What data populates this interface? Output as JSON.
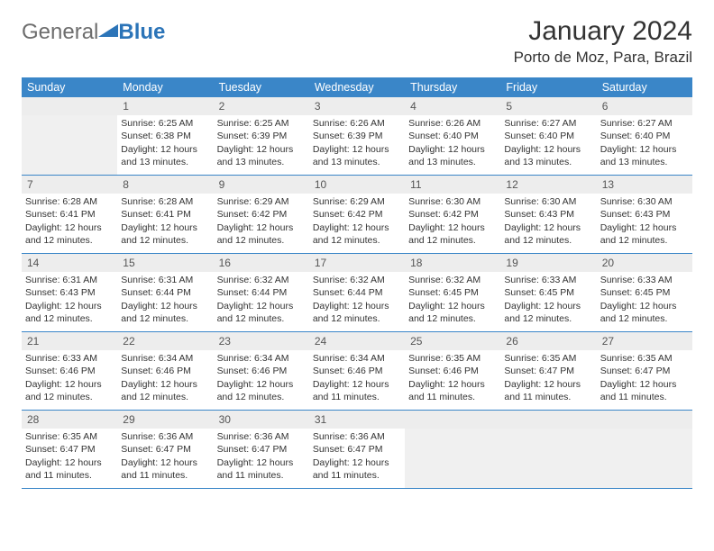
{
  "logo": {
    "part1": "General",
    "part2": "Blue",
    "triangle_color": "#2b74b8"
  },
  "title": "January 2024",
  "location": "Porto de Moz, Para, Brazil",
  "colors": {
    "header_bg": "#3a86c8",
    "header_text": "#ffffff",
    "daynum_bg": "#ededed",
    "border": "#3a86c8"
  },
  "weekdays": [
    "Sunday",
    "Monday",
    "Tuesday",
    "Wednesday",
    "Thursday",
    "Friday",
    "Saturday"
  ],
  "weeks": [
    [
      {
        "day": "",
        "sunrise": "",
        "sunset": "",
        "daylight": ""
      },
      {
        "day": "1",
        "sunrise": "Sunrise: 6:25 AM",
        "sunset": "Sunset: 6:38 PM",
        "daylight": "Daylight: 12 hours and 13 minutes."
      },
      {
        "day": "2",
        "sunrise": "Sunrise: 6:25 AM",
        "sunset": "Sunset: 6:39 PM",
        "daylight": "Daylight: 12 hours and 13 minutes."
      },
      {
        "day": "3",
        "sunrise": "Sunrise: 6:26 AM",
        "sunset": "Sunset: 6:39 PM",
        "daylight": "Daylight: 12 hours and 13 minutes."
      },
      {
        "day": "4",
        "sunrise": "Sunrise: 6:26 AM",
        "sunset": "Sunset: 6:40 PM",
        "daylight": "Daylight: 12 hours and 13 minutes."
      },
      {
        "day": "5",
        "sunrise": "Sunrise: 6:27 AM",
        "sunset": "Sunset: 6:40 PM",
        "daylight": "Daylight: 12 hours and 13 minutes."
      },
      {
        "day": "6",
        "sunrise": "Sunrise: 6:27 AM",
        "sunset": "Sunset: 6:40 PM",
        "daylight": "Daylight: 12 hours and 13 minutes."
      }
    ],
    [
      {
        "day": "7",
        "sunrise": "Sunrise: 6:28 AM",
        "sunset": "Sunset: 6:41 PM",
        "daylight": "Daylight: 12 hours and 12 minutes."
      },
      {
        "day": "8",
        "sunrise": "Sunrise: 6:28 AM",
        "sunset": "Sunset: 6:41 PM",
        "daylight": "Daylight: 12 hours and 12 minutes."
      },
      {
        "day": "9",
        "sunrise": "Sunrise: 6:29 AM",
        "sunset": "Sunset: 6:42 PM",
        "daylight": "Daylight: 12 hours and 12 minutes."
      },
      {
        "day": "10",
        "sunrise": "Sunrise: 6:29 AM",
        "sunset": "Sunset: 6:42 PM",
        "daylight": "Daylight: 12 hours and 12 minutes."
      },
      {
        "day": "11",
        "sunrise": "Sunrise: 6:30 AM",
        "sunset": "Sunset: 6:42 PM",
        "daylight": "Daylight: 12 hours and 12 minutes."
      },
      {
        "day": "12",
        "sunrise": "Sunrise: 6:30 AM",
        "sunset": "Sunset: 6:43 PM",
        "daylight": "Daylight: 12 hours and 12 minutes."
      },
      {
        "day": "13",
        "sunrise": "Sunrise: 6:30 AM",
        "sunset": "Sunset: 6:43 PM",
        "daylight": "Daylight: 12 hours and 12 minutes."
      }
    ],
    [
      {
        "day": "14",
        "sunrise": "Sunrise: 6:31 AM",
        "sunset": "Sunset: 6:43 PM",
        "daylight": "Daylight: 12 hours and 12 minutes."
      },
      {
        "day": "15",
        "sunrise": "Sunrise: 6:31 AM",
        "sunset": "Sunset: 6:44 PM",
        "daylight": "Daylight: 12 hours and 12 minutes."
      },
      {
        "day": "16",
        "sunrise": "Sunrise: 6:32 AM",
        "sunset": "Sunset: 6:44 PM",
        "daylight": "Daylight: 12 hours and 12 minutes."
      },
      {
        "day": "17",
        "sunrise": "Sunrise: 6:32 AM",
        "sunset": "Sunset: 6:44 PM",
        "daylight": "Daylight: 12 hours and 12 minutes."
      },
      {
        "day": "18",
        "sunrise": "Sunrise: 6:32 AM",
        "sunset": "Sunset: 6:45 PM",
        "daylight": "Daylight: 12 hours and 12 minutes."
      },
      {
        "day": "19",
        "sunrise": "Sunrise: 6:33 AM",
        "sunset": "Sunset: 6:45 PM",
        "daylight": "Daylight: 12 hours and 12 minutes."
      },
      {
        "day": "20",
        "sunrise": "Sunrise: 6:33 AM",
        "sunset": "Sunset: 6:45 PM",
        "daylight": "Daylight: 12 hours and 12 minutes."
      }
    ],
    [
      {
        "day": "21",
        "sunrise": "Sunrise: 6:33 AM",
        "sunset": "Sunset: 6:46 PM",
        "daylight": "Daylight: 12 hours and 12 minutes."
      },
      {
        "day": "22",
        "sunrise": "Sunrise: 6:34 AM",
        "sunset": "Sunset: 6:46 PM",
        "daylight": "Daylight: 12 hours and 12 minutes."
      },
      {
        "day": "23",
        "sunrise": "Sunrise: 6:34 AM",
        "sunset": "Sunset: 6:46 PM",
        "daylight": "Daylight: 12 hours and 12 minutes."
      },
      {
        "day": "24",
        "sunrise": "Sunrise: 6:34 AM",
        "sunset": "Sunset: 6:46 PM",
        "daylight": "Daylight: 12 hours and 11 minutes."
      },
      {
        "day": "25",
        "sunrise": "Sunrise: 6:35 AM",
        "sunset": "Sunset: 6:46 PM",
        "daylight": "Daylight: 12 hours and 11 minutes."
      },
      {
        "day": "26",
        "sunrise": "Sunrise: 6:35 AM",
        "sunset": "Sunset: 6:47 PM",
        "daylight": "Daylight: 12 hours and 11 minutes."
      },
      {
        "day": "27",
        "sunrise": "Sunrise: 6:35 AM",
        "sunset": "Sunset: 6:47 PM",
        "daylight": "Daylight: 12 hours and 11 minutes."
      }
    ],
    [
      {
        "day": "28",
        "sunrise": "Sunrise: 6:35 AM",
        "sunset": "Sunset: 6:47 PM",
        "daylight": "Daylight: 12 hours and 11 minutes."
      },
      {
        "day": "29",
        "sunrise": "Sunrise: 6:36 AM",
        "sunset": "Sunset: 6:47 PM",
        "daylight": "Daylight: 12 hours and 11 minutes."
      },
      {
        "day": "30",
        "sunrise": "Sunrise: 6:36 AM",
        "sunset": "Sunset: 6:47 PM",
        "daylight": "Daylight: 12 hours and 11 minutes."
      },
      {
        "day": "31",
        "sunrise": "Sunrise: 6:36 AM",
        "sunset": "Sunset: 6:47 PM",
        "daylight": "Daylight: 12 hours and 11 minutes."
      },
      {
        "day": "",
        "sunrise": "",
        "sunset": "",
        "daylight": ""
      },
      {
        "day": "",
        "sunrise": "",
        "sunset": "",
        "daylight": ""
      },
      {
        "day": "",
        "sunrise": "",
        "sunset": "",
        "daylight": ""
      }
    ]
  ]
}
